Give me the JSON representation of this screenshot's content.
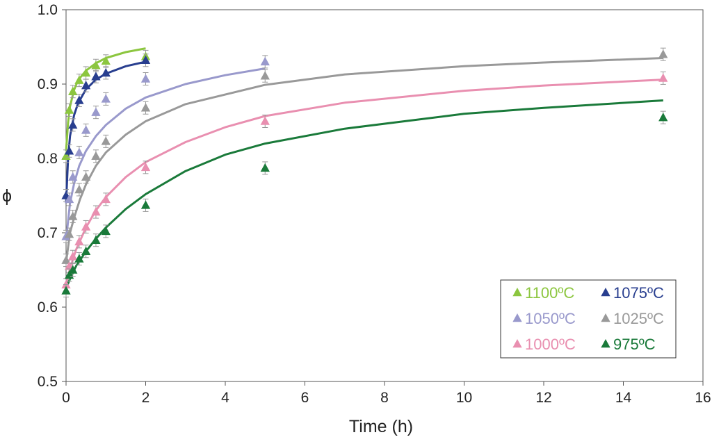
{
  "chart_data": {
    "type": "scatter",
    "xlabel": "Time (h)",
    "ylabel": "ϕ",
    "xlim": [
      0,
      16
    ],
    "ylim": [
      0.5,
      1.0
    ],
    "xticks": [
      "0",
      "2",
      "4",
      "6",
      "8",
      "10",
      "12",
      "14",
      "16"
    ],
    "yticks": [
      "0.5",
      "0.6",
      "0.7",
      "0.8",
      "0.9",
      "1.0"
    ],
    "legend_position": "bottom-right",
    "series": [
      {
        "name": "1100ºC",
        "color": "#8cc63f",
        "x": [
          0,
          0.08,
          0.17,
          0.33,
          0.5,
          0.75,
          1,
          2
        ],
        "y": [
          0.803,
          0.865,
          0.89,
          0.905,
          0.915,
          0.925,
          0.931,
          0.937
        ],
        "fit_x": [
          0,
          0.05,
          0.1,
          0.2,
          0.3,
          0.5,
          0.75,
          1,
          1.5,
          2
        ],
        "fit_y": [
          0.81,
          0.848,
          0.87,
          0.892,
          0.905,
          0.918,
          0.928,
          0.935,
          0.943,
          0.948
        ]
      },
      {
        "name": "1075ºC",
        "color": "#283e8f",
        "x": [
          0,
          0.08,
          0.17,
          0.33,
          0.5,
          0.75,
          1,
          2
        ],
        "y": [
          0.75,
          0.81,
          0.845,
          0.878,
          0.898,
          0.91,
          0.915,
          0.932
        ],
        "fit_x": [
          0,
          0.05,
          0.1,
          0.2,
          0.3,
          0.5,
          0.75,
          1,
          1.5,
          2
        ],
        "fit_y": [
          0.74,
          0.8,
          0.83,
          0.858,
          0.874,
          0.893,
          0.906,
          0.914,
          0.924,
          0.93
        ]
      },
      {
        "name": "1050ºC",
        "color": "#9999cc",
        "x": [
          0,
          0.08,
          0.17,
          0.33,
          0.5,
          0.75,
          1,
          2,
          5
        ],
        "y": [
          0.695,
          0.745,
          0.775,
          0.808,
          0.838,
          0.862,
          0.88,
          0.907,
          0.93
        ],
        "fit_x": [
          0,
          0.1,
          0.2,
          0.33,
          0.5,
          0.75,
          1,
          1.5,
          2,
          3,
          4,
          5
        ],
        "fit_y": [
          0.69,
          0.74,
          0.766,
          0.79,
          0.81,
          0.83,
          0.845,
          0.867,
          0.882,
          0.9,
          0.912,
          0.921
        ]
      },
      {
        "name": "1025ºC",
        "color": "#999999",
        "x": [
          0,
          0.08,
          0.17,
          0.33,
          0.5,
          0.75,
          1,
          2,
          5,
          15
        ],
        "y": [
          0.663,
          0.698,
          0.722,
          0.758,
          0.775,
          0.803,
          0.823,
          0.868,
          0.911,
          0.94
        ],
        "fit_x": [
          0,
          0.1,
          0.2,
          0.35,
          0.5,
          0.75,
          1,
          1.5,
          2,
          3,
          5,
          7,
          10,
          12,
          15
        ],
        "fit_y": [
          0.66,
          0.7,
          0.72,
          0.745,
          0.765,
          0.79,
          0.808,
          0.832,
          0.85,
          0.873,
          0.899,
          0.913,
          0.924,
          0.929,
          0.935
        ]
      },
      {
        "name": "1000ºC",
        "color": "#e98fb0",
        "x": [
          0,
          0.08,
          0.17,
          0.33,
          0.5,
          0.75,
          1,
          2,
          5,
          15
        ],
        "y": [
          0.63,
          0.655,
          0.668,
          0.688,
          0.708,
          0.728,
          0.745,
          0.788,
          0.85,
          0.908
        ],
        "fit_x": [
          0,
          0.1,
          0.25,
          0.5,
          0.75,
          1,
          1.5,
          2,
          3,
          4,
          5,
          7,
          10,
          12,
          15
        ],
        "fit_y": [
          0.63,
          0.652,
          0.677,
          0.707,
          0.73,
          0.748,
          0.775,
          0.795,
          0.822,
          0.842,
          0.857,
          0.875,
          0.891,
          0.898,
          0.906
        ]
      },
      {
        "name": "975ºC",
        "color": "#1a7a3a",
        "x": [
          0,
          0.08,
          0.17,
          0.33,
          0.5,
          0.75,
          1,
          2,
          5,
          15
        ],
        "y": [
          0.622,
          0.643,
          0.65,
          0.665,
          0.675,
          0.69,
          0.702,
          0.737,
          0.787,
          0.855
        ],
        "fit_x": [
          0,
          0.1,
          0.25,
          0.5,
          0.75,
          1,
          1.5,
          2,
          3,
          4,
          5,
          7,
          10,
          12,
          15
        ],
        "fit_y": [
          0.625,
          0.638,
          0.655,
          0.675,
          0.692,
          0.707,
          0.732,
          0.752,
          0.783,
          0.805,
          0.82,
          0.84,
          0.86,
          0.868,
          0.878
        ]
      }
    ]
  }
}
